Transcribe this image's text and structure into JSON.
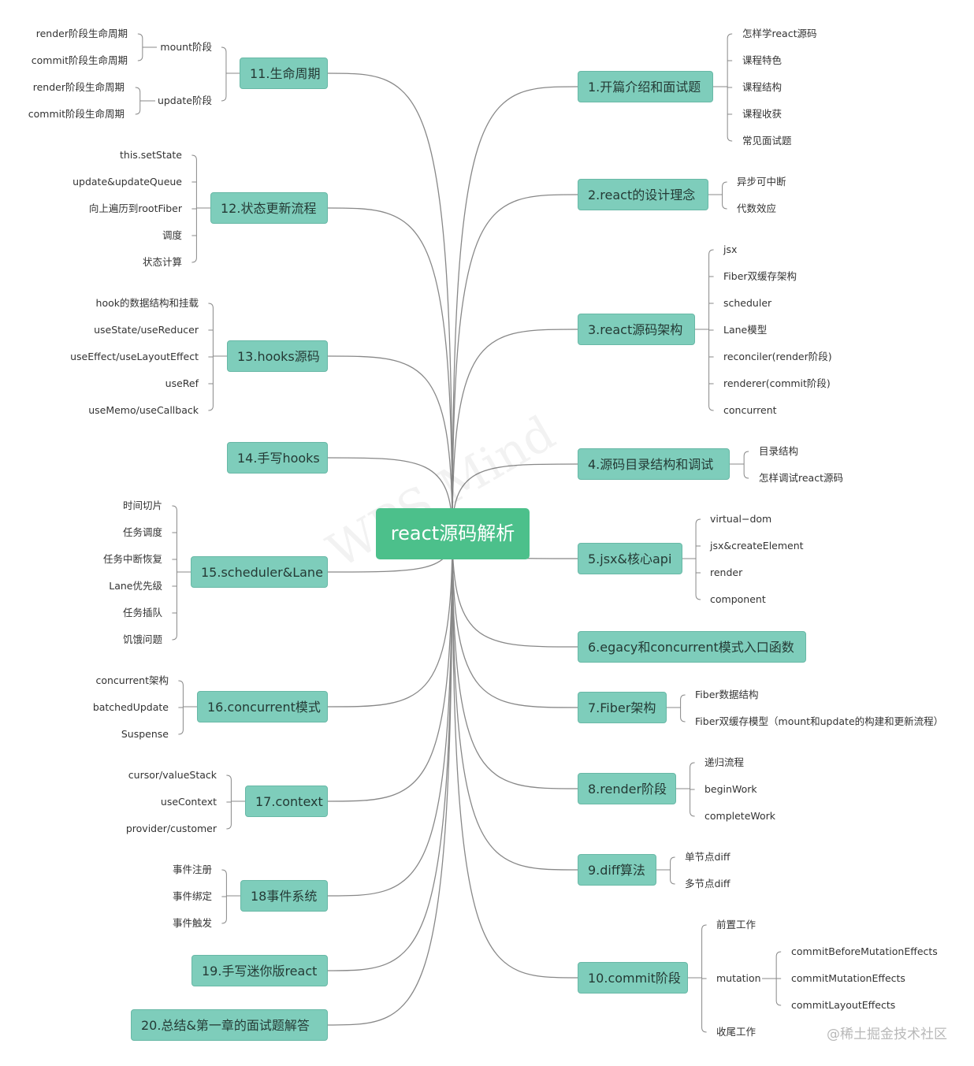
{
  "center": {
    "label": "react源码解析"
  },
  "colors": {
    "center": "#4CC08B",
    "topic": "#7ECDBB",
    "line": "#888888"
  },
  "topics": [
    {
      "label": "1.开篇介绍和面试题",
      "children": [
        {
          "label": "怎样学react源码"
        },
        {
          "label": "课程特色"
        },
        {
          "label": "课程结构"
        },
        {
          "label": "课程收获"
        },
        {
          "label": "常见面试题"
        }
      ]
    },
    {
      "label": "2.react的设计理念",
      "children": [
        {
          "label": "异步可中断"
        },
        {
          "label": "代数效应"
        }
      ]
    },
    {
      "label": "3.react源码架构",
      "children": [
        {
          "label": "jsx"
        },
        {
          "label": "Fiber双缓存架构"
        },
        {
          "label": "scheduler"
        },
        {
          "label": "Lane模型"
        },
        {
          "label": "reconciler(render阶段)"
        },
        {
          "label": "renderer(commit阶段)"
        },
        {
          "label": "concurrent"
        }
      ]
    },
    {
      "label": "4.源码目录结构和调试",
      "children": [
        {
          "label": "目录结构"
        },
        {
          "label": "怎样调试react源码"
        }
      ]
    },
    {
      "label": "5.jsx&核心api",
      "children": [
        {
          "label": "virtual−dom"
        },
        {
          "label": "jsx&createElement"
        },
        {
          "label": "render"
        },
        {
          "label": "component"
        }
      ]
    },
    {
      "label": "6.egacy和concurrent模式入口函数",
      "children": []
    },
    {
      "label": "7.Fiber架构",
      "children": [
        {
          "label": "Fiber数据结构"
        },
        {
          "label": "Fiber双缓存模型（mount和update的构建和更新流程）"
        }
      ]
    },
    {
      "label": "8.render阶段",
      "children": [
        {
          "label": "递归流程"
        },
        {
          "label": "beginWork"
        },
        {
          "label": "completeWork"
        }
      ]
    },
    {
      "label": "9.diff算法",
      "children": [
        {
          "label": "单节点diff"
        },
        {
          "label": "多节点diff"
        }
      ]
    },
    {
      "label": "10.commit阶段",
      "children": [
        {
          "label": "前置工作"
        },
        {
          "label": "mutation",
          "children": [
            {
              "label": "commitBeforeMutationEffects"
            },
            {
              "label": "commitMutationEffects"
            },
            {
              "label": "commitLayoutEffects"
            }
          ]
        },
        {
          "label": "收尾工作"
        }
      ]
    },
    {
      "label": "11.生命周期",
      "children": [
        {
          "label": "mount阶段",
          "children": [
            {
              "label": "render阶段生命周期"
            },
            {
              "label": "commit阶段生命周期"
            }
          ]
        },
        {
          "label": "update阶段",
          "children": [
            {
              "label": "render阶段生命周期"
            },
            {
              "label": "commit阶段生命周期"
            }
          ]
        }
      ]
    },
    {
      "label": "12.状态更新流程",
      "children": [
        {
          "label": "this.setState"
        },
        {
          "label": "update&updateQueue"
        },
        {
          "label": "向上遍历到rootFiber"
        },
        {
          "label": "调度"
        },
        {
          "label": "状态计算"
        }
      ]
    },
    {
      "label": "13.hooks源码",
      "children": [
        {
          "label": "hook的数据结构和挂载"
        },
        {
          "label": "useState/useReducer"
        },
        {
          "label": "useEffect/useLayoutEffect"
        },
        {
          "label": "useRef"
        },
        {
          "label": "useMemo/useCallback"
        }
      ]
    },
    {
      "label": "14.手写hooks",
      "children": []
    },
    {
      "label": "15.scheduler&Lane",
      "children": [
        {
          "label": "时间切片"
        },
        {
          "label": "任务调度"
        },
        {
          "label": "任务中断恢复"
        },
        {
          "label": "Lane优先级"
        },
        {
          "label": "任务插队"
        },
        {
          "label": "饥饿问题"
        }
      ]
    },
    {
      "label": "16.concurrent模式",
      "children": [
        {
          "label": "concurrent架构"
        },
        {
          "label": "batchedUpdate"
        },
        {
          "label": "Suspense"
        }
      ]
    },
    {
      "label": "17.context",
      "children": [
        {
          "label": "cursor/valueStack"
        },
        {
          "label": "useContext"
        },
        {
          "label": "provider/customer"
        }
      ]
    },
    {
      "label": "18事件系统",
      "children": [
        {
          "label": "事件注册"
        },
        {
          "label": "事件绑定"
        },
        {
          "label": "事件触发"
        }
      ]
    },
    {
      "label": "19.手写迷你版react",
      "children": []
    },
    {
      "label": "20.总结&第一章的面试题解答",
      "children": []
    }
  ],
  "watermark": "WPS Mind",
  "credit": "@稀土掘金技术社区"
}
